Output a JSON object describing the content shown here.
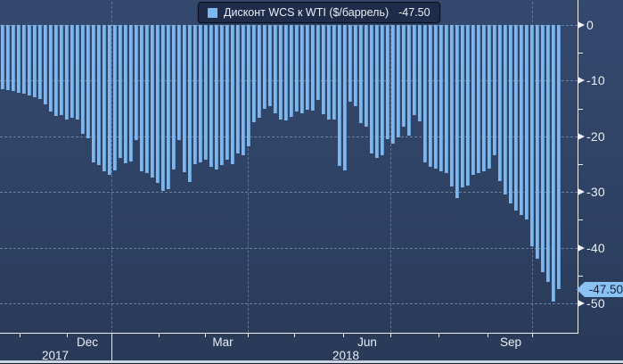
{
  "legend": {
    "label": "Дисконт WCS к WTI ($/баррель)",
    "value": "-47.50",
    "swatch_color": "#7db7f0"
  },
  "y_axis": {
    "tick_labels": [
      "0",
      "-10",
      "-20",
      "-30",
      "-40",
      "-50"
    ],
    "last_value_tag": "-47.50"
  },
  "x_axis": {
    "month_labels": [
      "Dec",
      "Mar",
      "Jun",
      "Sep"
    ],
    "year_labels": [
      "2017",
      "2018"
    ]
  },
  "colors": {
    "bar": "#7db7f0",
    "background": "#2e4264",
    "axis": "#eef2f7",
    "tag_background": "#8ac2f4",
    "tag_text": "#13203a"
  },
  "chart_data": {
    "type": "bar",
    "title": "Дисконт WCS к WTI ($/баррель)",
    "series_name": "Дисконт WCS к WTI",
    "unit": "$/баррель",
    "last_value": -47.5,
    "min_value": -49.75,
    "ylim": [
      -55,
      0
    ],
    "y_ticks": [
      0,
      -10,
      -20,
      -30,
      -40,
      -50
    ],
    "x_tick_months": [
      "Dec",
      "Mar",
      "Jun",
      "Sep"
    ],
    "x_years": [
      "2017",
      "2018"
    ],
    "legend_position": "top-center",
    "grid": "dashed",
    "values": [
      -11.5,
      -11.7,
      -11.9,
      -12.1,
      -12.3,
      -12.6,
      -12.9,
      -13.3,
      -14.2,
      -15.6,
      -16.4,
      -16.1,
      -16.9,
      -16.7,
      -16.9,
      -19.6,
      -20.4,
      -24.7,
      -25.2,
      -26.3,
      -26.9,
      -26.1,
      -23.8,
      -24.8,
      -24.5,
      -20.7,
      -26.3,
      -26.6,
      -27.4,
      -28.4,
      -29.8,
      -29.5,
      -26.0,
      -20.7,
      -26.5,
      -28.2,
      -25.0,
      -24.6,
      -24.2,
      -25.5,
      -26.0,
      -25.1,
      -24.2,
      -25.0,
      -23.1,
      -23.4,
      -21.8,
      -17.5,
      -16.7,
      -15.1,
      -14.5,
      -15.9,
      -16.9,
      -17.2,
      -16.5,
      -15.5,
      -15.9,
      -15.2,
      -15.4,
      -13.4,
      -16.0,
      -16.9,
      -16.9,
      -25.3,
      -26.1,
      -13.7,
      -14.5,
      -17.7,
      -18.3,
      -23.1,
      -23.9,
      -23.4,
      -20.5,
      -21.3,
      -20.2,
      -18.3,
      -19.9,
      -16.1,
      -17.3,
      -24.7,
      -25.4,
      -25.8,
      -26.3,
      -26.6,
      -29.0,
      -31.1,
      -29.2,
      -28.9,
      -26.9,
      -26.6,
      -26.3,
      -25.8,
      -23.4,
      -28.0,
      -30.4,
      -32.0,
      -33.3,
      -34.1,
      -34.9,
      -39.8,
      -41.9,
      -44.4,
      -46.2,
      -49.75,
      -47.5
    ]
  }
}
